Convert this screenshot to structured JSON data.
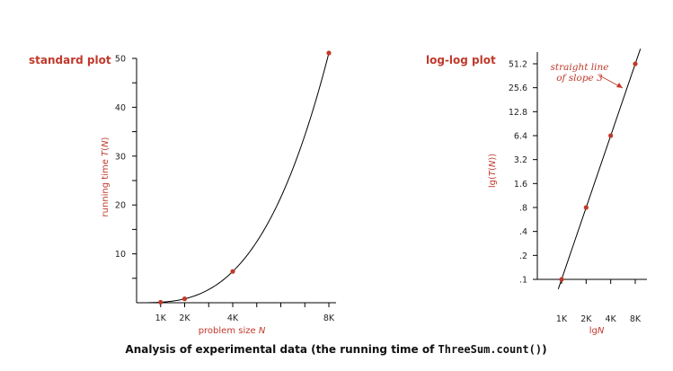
{
  "colors": {
    "accent": "#c0392b",
    "axis": "#000000"
  },
  "caption": {
    "prefix": "Analysis of experimental data (the running time of ",
    "code": "ThreeSum.count()",
    "suffix": ")"
  },
  "chart_data": [
    {
      "type": "line",
      "title": "standard plot",
      "xlabel": "problem size N",
      "ylabel": "running time T(N)",
      "x_ticks": [
        "1K",
        "2K",
        "4K",
        "8K"
      ],
      "y_ticks": [
        "10",
        "20",
        "30",
        "40",
        "50"
      ],
      "xlim": [
        0,
        8000
      ],
      "ylim": [
        0,
        50
      ],
      "points": [
        {
          "x": 1000,
          "y": 0.1
        },
        {
          "x": 2000,
          "y": 0.8
        },
        {
          "x": 4000,
          "y": 6.4
        },
        {
          "x": 8000,
          "y": 51.1
        }
      ],
      "curve": "cubic fit"
    },
    {
      "type": "line",
      "title": "log-log plot",
      "xlabel": "lgN",
      "ylabel": "lg(T(N))",
      "x_ticks": [
        "1K",
        "2K",
        "4K",
        "8K"
      ],
      "y_ticks": [
        ".1",
        ".2",
        ".4",
        ".8",
        "1.6",
        "3.2",
        "6.4",
        "12.8",
        "25.6",
        "51.2"
      ],
      "scale": "log-log",
      "points": [
        {
          "x": 1000,
          "y": 0.1
        },
        {
          "x": 2000,
          "y": 0.8
        },
        {
          "x": 4000,
          "y": 6.4
        },
        {
          "x": 8000,
          "y": 51.1
        }
      ],
      "annotation": "straight line of slope 3"
    }
  ]
}
